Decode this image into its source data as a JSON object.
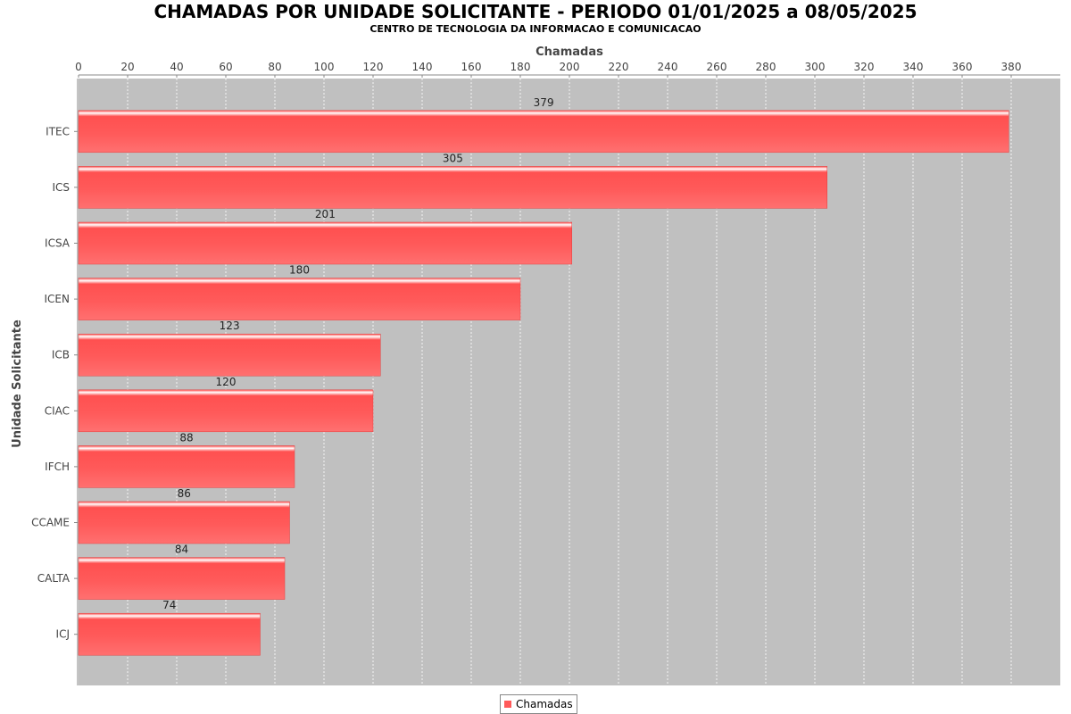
{
  "title": "CHAMADAS POR UNIDADE SOLICITANTE - PERIODO 01/01/2025 a 08/05/2025",
  "subtitle": "CENTRO DE TECNOLOGIA DA INFORMACAO E COMUNICACAO",
  "chart_data": {
    "type": "bar",
    "orientation": "horizontal",
    "categories": [
      "ITEC",
      "ICS",
      "ICSA",
      "ICEN",
      "ICB",
      "CIAC",
      "IFCH",
      "CCAME",
      "CALTA",
      "ICJ"
    ],
    "series": [
      {
        "name": "Chamadas",
        "values": [
          379,
          305,
          201,
          180,
          123,
          120,
          88,
          86,
          84,
          74
        ],
        "color": "#ff5a5a"
      }
    ],
    "xlabel": "Chamadas",
    "ylabel": "Unidade Solicitante",
    "xlim": [
      0,
      400
    ],
    "xticks": [
      0,
      20,
      40,
      60,
      80,
      100,
      120,
      140,
      160,
      180,
      200,
      220,
      240,
      260,
      280,
      300,
      320,
      340,
      360,
      380
    ],
    "x_axis_position": "top",
    "grid": true,
    "data_labels": true,
    "legend": "bottom-center",
    "plot_background": "#c0c0c0"
  }
}
